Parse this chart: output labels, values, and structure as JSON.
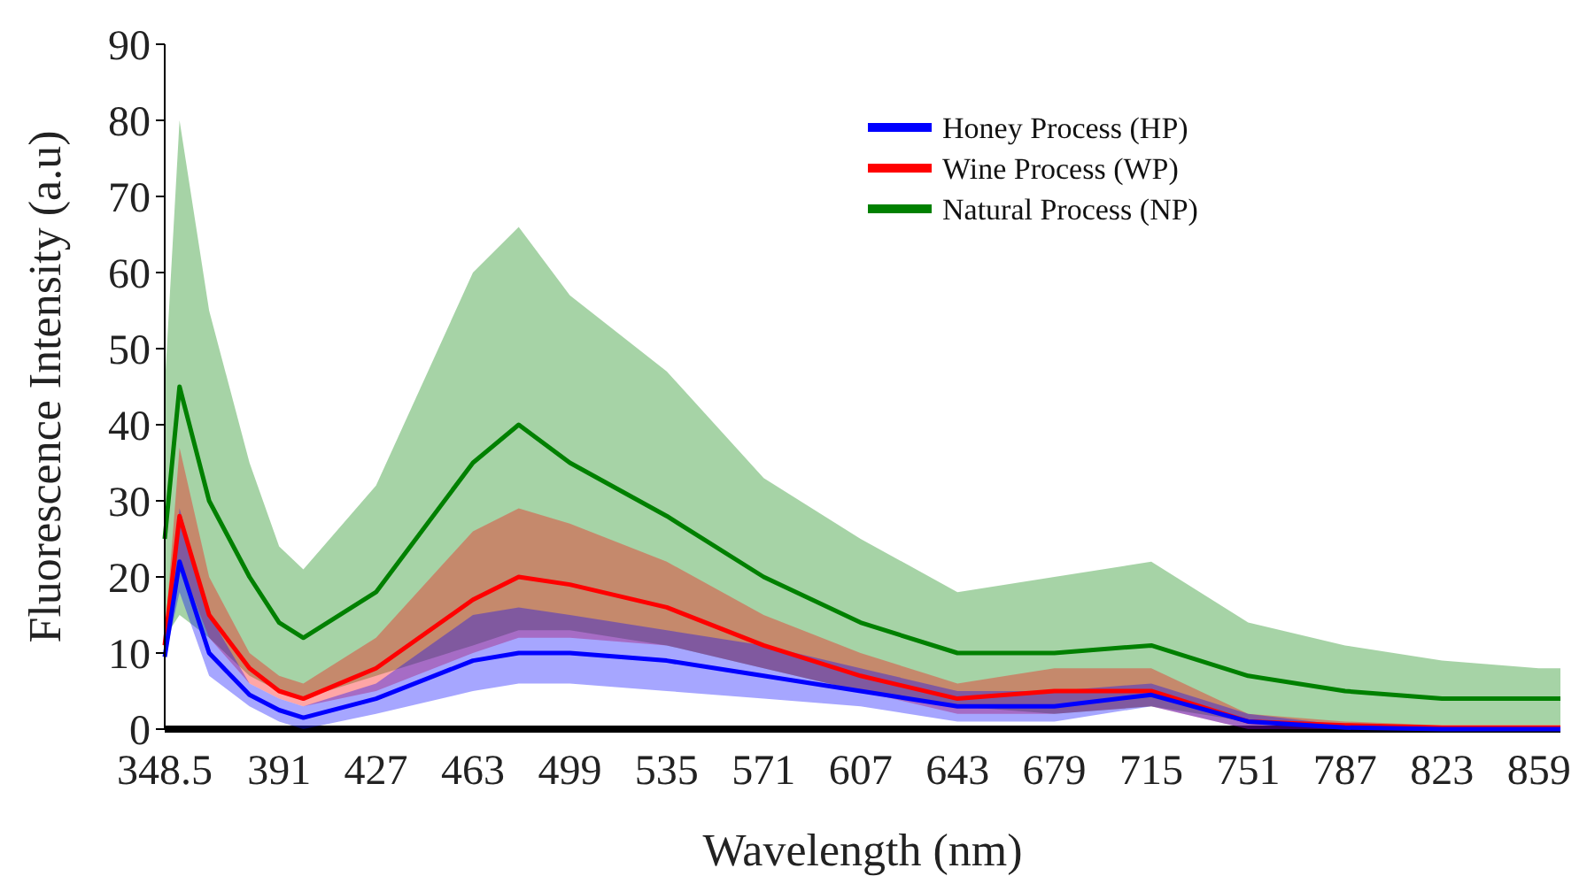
{
  "chart_data": {
    "type": "line",
    "xlabel": "Wavelength (nm)",
    "ylabel": "Fluorescence Intensity (a.u)",
    "x": [
      348.5,
      354,
      365,
      380,
      391,
      400,
      427,
      463,
      480,
      499,
      535,
      571,
      607,
      643,
      679,
      715,
      751,
      787,
      823,
      859,
      867
    ],
    "xlim": [
      348.5,
      867
    ],
    "xticks": [
      348.5,
      391,
      427,
      463,
      499,
      535,
      571,
      607,
      643,
      679,
      715,
      751,
      787,
      823,
      859
    ],
    "ylim": [
      0,
      90
    ],
    "yticks": [
      0,
      10,
      20,
      30,
      40,
      50,
      60,
      70,
      80,
      90
    ],
    "legend": "top right",
    "grid": false,
    "series": [
      {
        "name": "Honey Process (HP)",
        "color": "#0000ff",
        "values": [
          9.5,
          22,
          10,
          4.5,
          2.5,
          1.5,
          4,
          9,
          10,
          10,
          9,
          7,
          5,
          3,
          3,
          4.5,
          1,
          0.2,
          0,
          0,
          0
        ],
        "lower": [
          9,
          18,
          7,
          3,
          1,
          0,
          2,
          5,
          6,
          6,
          5,
          4,
          3,
          1,
          1,
          3,
          0,
          0,
          0,
          0,
          0
        ],
        "upper": [
          10,
          29,
          15,
          6,
          4,
          3,
          6,
          15,
          16,
          15,
          13,
          11,
          8,
          5,
          5,
          6,
          2,
          0.5,
          0,
          0,
          0
        ]
      },
      {
        "name": "Wine Process (WP)",
        "color": "#ff0000",
        "values": [
          11,
          28,
          15,
          8,
          5,
          4,
          8,
          17,
          20,
          19,
          16,
          11,
          7,
          4,
          5,
          5,
          1,
          0.5,
          0.2,
          0.2,
          0.2
        ],
        "lower": [
          10,
          22,
          12,
          6,
          4,
          3,
          5,
          10,
          12,
          12,
          11,
          8,
          5,
          2,
          2,
          3,
          0,
          0,
          0,
          0,
          0
        ],
        "upper": [
          12,
          37,
          20,
          10,
          7,
          6,
          12,
          26,
          29,
          27,
          22,
          15,
          10,
          6,
          8,
          8,
          2,
          1,
          0.5,
          0.5,
          0.5
        ]
      },
      {
        "name": "Natural Process (NP)",
        "color": "#008000",
        "values": [
          25,
          45,
          30,
          20,
          14,
          12,
          18,
          35,
          40,
          35,
          28,
          20,
          14,
          10,
          10,
          11,
          7,
          5,
          4,
          4,
          4
        ],
        "lower": [
          12,
          15,
          12,
          7,
          5,
          4,
          7,
          11,
          13,
          13,
          11,
          8,
          5,
          3,
          2,
          3,
          1,
          0.5,
          0.5,
          0.5,
          0.5
        ],
        "upper": [
          45,
          80,
          55,
          35,
          24,
          21,
          32,
          60,
          66,
          57,
          47,
          33,
          25,
          18,
          20,
          22,
          14,
          11,
          9,
          8,
          8
        ]
      }
    ]
  }
}
